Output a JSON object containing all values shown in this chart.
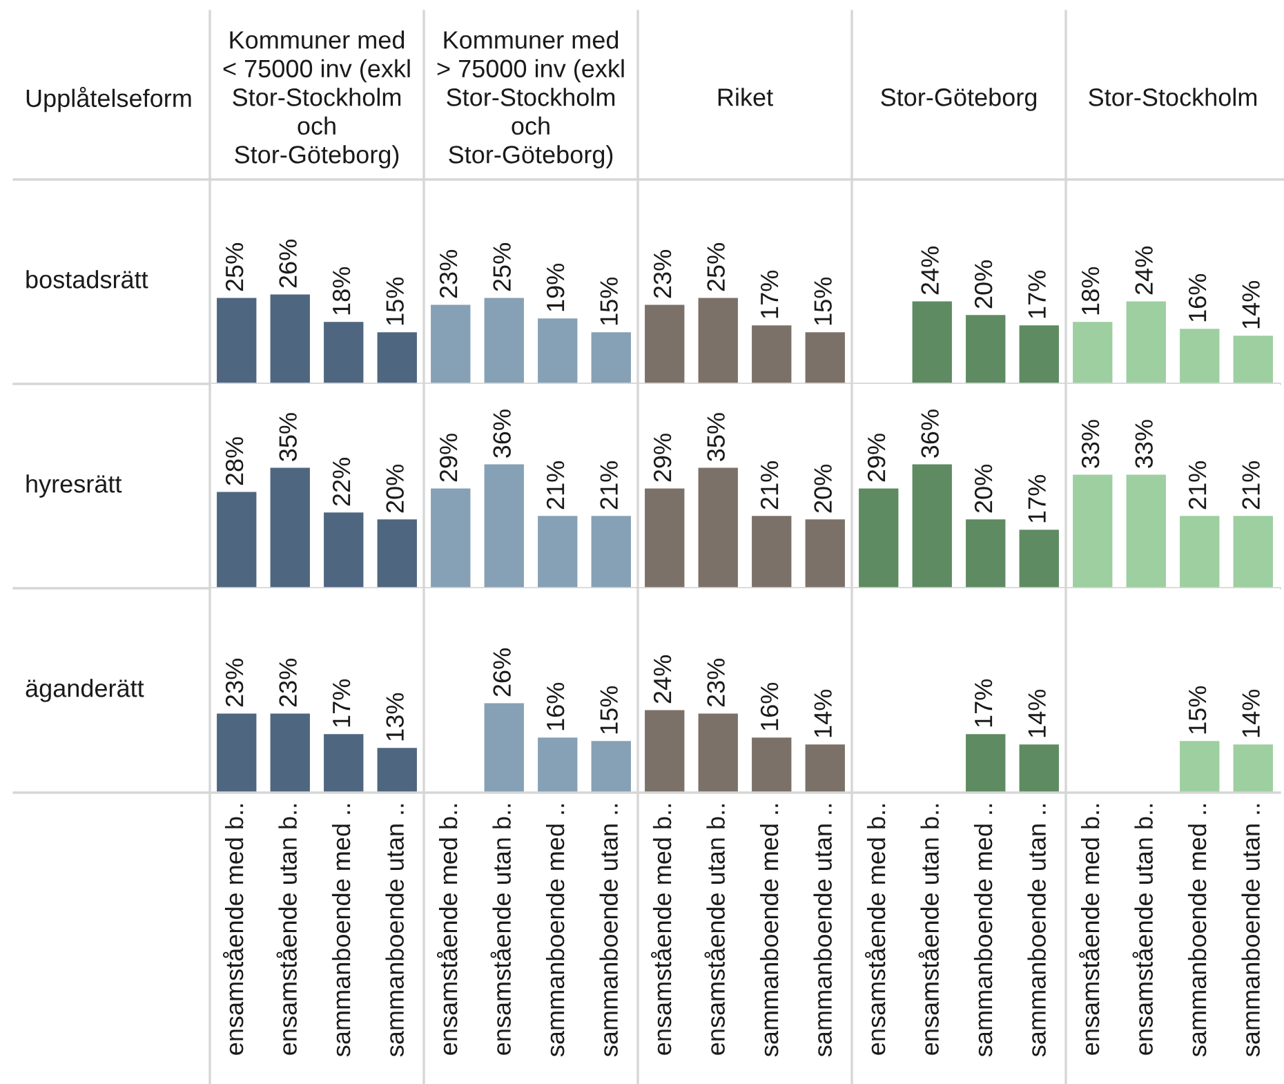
{
  "chart_data": [
    {
      "type": "bar",
      "title": "Kommuner med\n< 75000 inv (exkl\nStor-Stockholm\noch\nStor-Göteborg)",
      "ylabel": "bostadsrätt",
      "annotations": [
        "Upplåtelseform"
      ],
      "categories": [
        null,
        null,
        null,
        null
      ],
      "values": [
        25,
        26,
        18,
        15
      ],
      "value_labels": [
        "25%",
        "26%",
        "18%",
        "15%"
      ],
      "color": "#4f6680"
    },
    {
      "type": "bar",
      "title": "Kommuner med\n> 75000 inv (exkl\nStor-Stockholm\noch\nStor-Göteborg)",
      "categories": [
        null,
        null,
        null,
        null
      ],
      "values": [
        23,
        25,
        19,
        15
      ],
      "value_labels": [
        "23%",
        "25%",
        "19%",
        "15%"
      ],
      "color": "#86a0b5"
    },
    {
      "type": "bar",
      "title": "Riket",
      "categories": [
        null,
        null,
        null,
        null
      ],
      "values": [
        23,
        25,
        17,
        15
      ],
      "value_labels": [
        "23%",
        "25%",
        "17%",
        "15%"
      ],
      "color": "#7b7168"
    },
    {
      "type": "bar",
      "title": "Stor-Göteborg",
      "categories": [
        null,
        null,
        null,
        null
      ],
      "values": [
        null,
        24,
        20,
        17
      ],
      "value_labels": [
        null,
        "24%",
        "20%",
        "17%"
      ],
      "color": "#5e8b62"
    },
    {
      "type": "bar",
      "title": "Stor-Stockholm",
      "categories": [
        null,
        null,
        null,
        null
      ],
      "values": [
        18,
        24,
        16,
        14
      ],
      "value_labels": [
        "18%",
        "24%",
        "16%",
        "14%"
      ],
      "color": "#9dcfa0"
    },
    {
      "type": "bar",
      "ylabel": "hyresrätt",
      "categories": [
        null,
        null,
        null,
        null
      ],
      "values": [
        28,
        35,
        22,
        20
      ],
      "value_labels": [
        "28%",
        "35%",
        "22%",
        "20%"
      ],
      "color": "#4f6680"
    },
    {
      "type": "bar",
      "categories": [
        null,
        null,
        null,
        null
      ],
      "values": [
        29,
        36,
        21,
        21
      ],
      "value_labels": [
        "29%",
        "36%",
        "21%",
        "21%"
      ],
      "color": "#86a0b5"
    },
    {
      "type": "bar",
      "categories": [
        null,
        null,
        null,
        null
      ],
      "values": [
        29,
        35,
        21,
        20
      ],
      "value_labels": [
        "29%",
        "35%",
        "21%",
        "20%"
      ],
      "color": "#7b7168"
    },
    {
      "type": "bar",
      "categories": [
        null,
        null,
        null,
        null
      ],
      "values": [
        29,
        36,
        20,
        17
      ],
      "value_labels": [
        "29%",
        "36%",
        "20%",
        "17%"
      ],
      "color": "#5e8b62"
    },
    {
      "type": "bar",
      "categories": [
        null,
        null,
        null,
        null
      ],
      "values": [
        33,
        33,
        21,
        21
      ],
      "value_labels": [
        "33%",
        "33%",
        "21%",
        "21%"
      ],
      "color": "#9dcfa0"
    },
    {
      "type": "bar",
      "ylabel": "äganderätt",
      "categories": [
        "ensamstående med b..",
        "ensamstående utan b..",
        "sammanboende med ..",
        "sammanboende utan .."
      ],
      "values": [
        23,
        23,
        17,
        13
      ],
      "value_labels": [
        "23%",
        "23%",
        "17%",
        "13%"
      ],
      "color": "#4f6680",
      "tick_labels": "x"
    },
    {
      "type": "bar",
      "categories": [
        "ensamstående med b..",
        "ensamstående utan b..",
        "sammanboende med ..",
        "sammanboende utan .."
      ],
      "values": [
        null,
        26,
        16,
        15
      ],
      "value_labels": [
        null,
        "26%",
        "16%",
        "15%"
      ],
      "color": "#86a0b5",
      "tick_labels": "x"
    },
    {
      "type": "bar",
      "categories": [
        "ensamstående med b..",
        "ensamstående utan b..",
        "sammanboende med ..",
        "sammanboende utan .."
      ],
      "values": [
        24,
        23,
        16,
        14
      ],
      "value_labels": [
        "24%",
        "23%",
        "16%",
        "14%"
      ],
      "color": "#7b7168",
      "tick_labels": "x"
    },
    {
      "type": "bar",
      "categories": [
        "ensamstående med b..",
        "ensamstående utan b..",
        "sammanboende med ..",
        "sammanboende utan .."
      ],
      "values": [
        null,
        null,
        17,
        14
      ],
      "value_labels": [
        null,
        null,
        "17%",
        "14%"
      ],
      "color": "#5e8b62",
      "tick_labels": "x"
    },
    {
      "type": "bar",
      "categories": [
        "ensamstående med b..",
        "ensamstående utan b..",
        "sammanboende med ..",
        "sammanboende utan .."
      ],
      "values": [
        null,
        null,
        15,
        14
      ],
      "value_labels": [
        null,
        null,
        "15%",
        "14%"
      ],
      "color": "#9dcfa0",
      "tick_labels": "x"
    }
  ]
}
